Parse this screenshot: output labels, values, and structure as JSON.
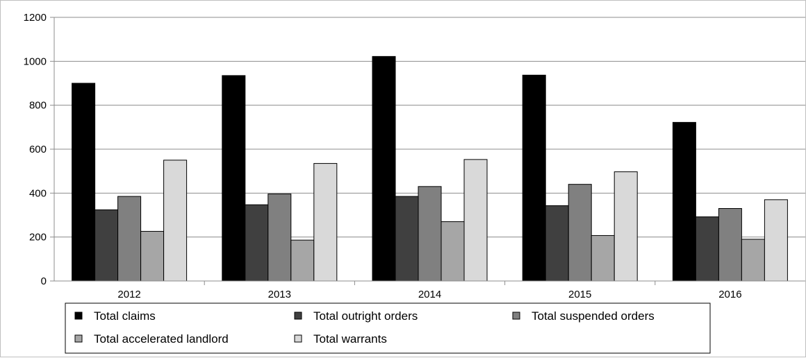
{
  "chart_data": {
    "type": "bar",
    "categories": [
      "2012",
      "2013",
      "2014",
      "2015",
      "2016"
    ],
    "series": [
      {
        "name": "Total claims",
        "color": "#000000",
        "values": [
          900,
          935,
          1022,
          937,
          722
        ]
      },
      {
        "name": "Total outright orders",
        "color": "#404040",
        "values": [
          324,
          347,
          385,
          343,
          292
        ]
      },
      {
        "name": "Total suspended orders",
        "color": "#808080",
        "values": [
          385,
          396,
          430,
          440,
          330
        ]
      },
      {
        "name": "Total accelerated landlord",
        "color": "#a6a6a6",
        "values": [
          226,
          186,
          270,
          207,
          190
        ]
      },
      {
        "name": "Total warrants",
        "color": "#d9d9d9",
        "values": [
          550,
          535,
          553,
          497,
          370
        ]
      }
    ],
    "ylim": [
      0,
      1200
    ],
    "yticks": [
      0,
      200,
      400,
      600,
      800,
      1000,
      1200
    ],
    "grid": true,
    "legend_position": "bottom"
  }
}
